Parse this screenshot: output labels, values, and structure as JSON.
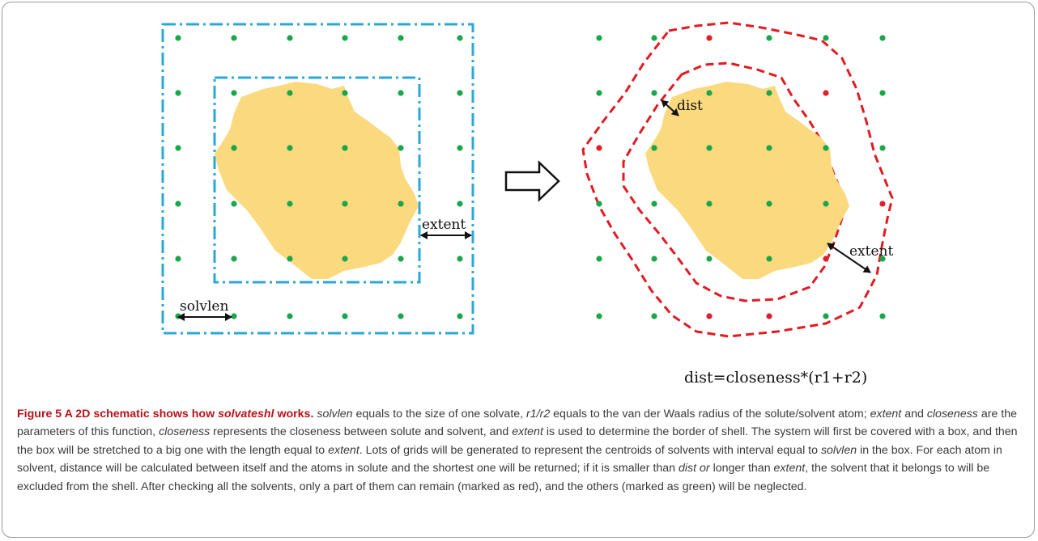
{
  "figure": {
    "labels": {
      "solvlen": "solvlen",
      "extent_left": "extent",
      "dist": "dist",
      "extent_right": "extent",
      "formula": "dist=closeness*(r1+r2)"
    },
    "colors": {
      "box": "#2aa8d8",
      "shell": "#e11b22",
      "green_dot": "#1aa64a",
      "red_dot": "#e01e2a",
      "solute": "#fbd97f"
    }
  },
  "caption": {
    "title_prefix": "Figure 5 A 2D schematic shows how ",
    "title_term": "solvateshl",
    "title_suffix": " works.",
    "segments": [
      {
        "t": " ",
        "i": false
      },
      {
        "t": "solvlen",
        "i": true
      },
      {
        "t": " equals to the size of one solvate, ",
        "i": false
      },
      {
        "t": "r1/r2",
        "i": true
      },
      {
        "t": " equals to the van der Waals radius of the solute/solvent atom; ",
        "i": false
      },
      {
        "t": "extent",
        "i": true
      },
      {
        "t": " and ",
        "i": false
      },
      {
        "t": "closeness",
        "i": true
      },
      {
        "t": " are the parameters of this function, ",
        "i": false
      },
      {
        "t": "closeness",
        "i": true
      },
      {
        "t": " represents the closeness between solute and solvent, and ",
        "i": false
      },
      {
        "t": "extent",
        "i": true
      },
      {
        "t": " is used to determine the border of shell. The system will first be covered with a box, and then the box will be stretched to a big one with the length equal to ",
        "i": false
      },
      {
        "t": "extent",
        "i": true
      },
      {
        "t": ". Lots of grids will be generated to represent the centroids of solvents with interval equal to ",
        "i": false
      },
      {
        "t": "solvlen",
        "i": true
      },
      {
        "t": " in the box. For each atom in solvent, distance will be calculated between itself and the atoms in solute and the shortest one will be returned; if it is smaller than ",
        "i": false
      },
      {
        "t": "dist or",
        "i": true
      },
      {
        "t": " longer than ",
        "i": false
      },
      {
        "t": "extent",
        "i": true
      },
      {
        "t": ", the solvent that it belongs to will be excluded from the shell. After checking all the solvents, only a part of them can remain (marked as red), and the others (marked as green) will be neglected.",
        "i": false
      }
    ]
  }
}
